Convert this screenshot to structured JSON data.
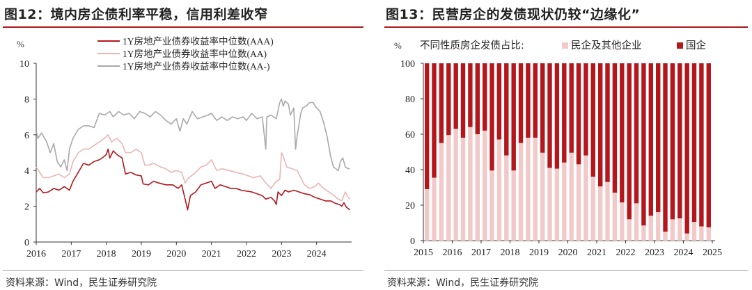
{
  "left_panel": {
    "title": "图12：境内房企债利率平稳，信用利差收窄",
    "source": "资料来源：Wind，民生证券研究院"
  },
  "right_panel": {
    "title": "图13：民营房企的发债现状仍较“边缘化”",
    "source": "资料来源：Wind，民生证券研究院"
  },
  "colors": {
    "aaa": "#b3161b",
    "aa": "#eab4b4",
    "aa_minus": "#a8a8a8",
    "private": "#f2c9c9",
    "state": "#b3161b",
    "title_rule": "#b3161b"
  },
  "chart_data": [
    {
      "type": "line",
      "ylabel": "%",
      "ylim": [
        0,
        10
      ],
      "yticks": [
        "0",
        "2",
        "4",
        "6",
        "8",
        "10"
      ],
      "xlim": [
        2016,
        2025
      ],
      "xticks": [
        "2016",
        "2017",
        "2018",
        "2019",
        "2020",
        "2021",
        "2022",
        "2023",
        "2024"
      ],
      "legend_position": "top-right",
      "grid": false,
      "series": [
        {
          "name": "1Y房地产业债券收益率中位数(AAA)",
          "color_key": "aaa",
          "points": [
            [
              2016.0,
              2.8
            ],
            [
              2016.1,
              3.0
            ],
            [
              2016.2,
              2.75
            ],
            [
              2016.35,
              2.8
            ],
            [
              2016.5,
              3.0
            ],
            [
              2016.65,
              2.9
            ],
            [
              2016.8,
              3.1
            ],
            [
              2016.95,
              2.9
            ],
            [
              2017.05,
              3.4
            ],
            [
              2017.2,
              3.9
            ],
            [
              2017.35,
              4.4
            ],
            [
              2017.5,
              4.3
            ],
            [
              2017.65,
              4.5
            ],
            [
              2017.8,
              4.6
            ],
            [
              2017.95,
              4.8
            ],
            [
              2018.0,
              4.9
            ],
            [
              2018.05,
              5.2
            ],
            [
              2018.1,
              4.7
            ],
            [
              2018.2,
              5.1
            ],
            [
              2018.3,
              4.9
            ],
            [
              2018.45,
              4.7
            ],
            [
              2018.55,
              3.8
            ],
            [
              2018.7,
              3.9
            ],
            [
              2018.85,
              3.75
            ],
            [
              2019.0,
              3.7
            ],
            [
              2019.05,
              3.25
            ],
            [
              2019.2,
              3.2
            ],
            [
              2019.35,
              3.4
            ],
            [
              2019.5,
              3.3
            ],
            [
              2019.7,
              3.2
            ],
            [
              2019.9,
              3.2
            ],
            [
              2020.05,
              3.0
            ],
            [
              2020.15,
              3.2
            ],
            [
              2020.25,
              2.4
            ],
            [
              2020.32,
              1.8
            ],
            [
              2020.4,
              2.6
            ],
            [
              2020.55,
              2.8
            ],
            [
              2020.7,
              3.2
            ],
            [
              2020.85,
              3.3
            ],
            [
              2021.0,
              3.4
            ],
            [
              2021.1,
              3.0
            ],
            [
              2021.25,
              3.2
            ],
            [
              2021.4,
              3.1
            ],
            [
              2021.55,
              3.0
            ],
            [
              2021.7,
              3.0
            ],
            [
              2021.85,
              2.9
            ],
            [
              2022.0,
              2.85
            ],
            [
              2022.15,
              2.8
            ],
            [
              2022.3,
              2.7
            ],
            [
              2022.45,
              2.6
            ],
            [
              2022.55,
              2.4
            ],
            [
              2022.7,
              2.5
            ],
            [
              2022.8,
              2.3
            ],
            [
              2022.85,
              2.1
            ],
            [
              2022.9,
              2.8
            ],
            [
              2023.0,
              2.6
            ],
            [
              2023.1,
              2.9
            ],
            [
              2023.2,
              2.8
            ],
            [
              2023.35,
              2.9
            ],
            [
              2023.5,
              2.8
            ],
            [
              2023.65,
              2.7
            ],
            [
              2023.8,
              2.65
            ],
            [
              2023.95,
              2.5
            ],
            [
              2024.1,
              2.4
            ],
            [
              2024.25,
              2.3
            ],
            [
              2024.4,
              2.3
            ],
            [
              2024.55,
              2.15
            ],
            [
              2024.65,
              2.1
            ],
            [
              2024.72,
              2.0
            ],
            [
              2024.78,
              2.2
            ],
            [
              2024.85,
              1.95
            ],
            [
              2024.95,
              1.8
            ]
          ]
        },
        {
          "name": "1Y房地产业债券收益率中位数(AA)",
          "color_key": "aa",
          "points": [
            [
              2016.0,
              4.2
            ],
            [
              2016.1,
              3.9
            ],
            [
              2016.2,
              3.6
            ],
            [
              2016.35,
              3.6
            ],
            [
              2016.5,
              3.7
            ],
            [
              2016.65,
              3.8
            ],
            [
              2016.8,
              3.6
            ],
            [
              2016.95,
              3.8
            ],
            [
              2017.05,
              4.5
            ],
            [
              2017.2,
              5.0
            ],
            [
              2017.35,
              5.2
            ],
            [
              2017.5,
              5.2
            ],
            [
              2017.65,
              5.4
            ],
            [
              2017.8,
              5.6
            ],
            [
              2017.95,
              5.8
            ],
            [
              2018.05,
              6.0
            ],
            [
              2018.15,
              5.6
            ],
            [
              2018.3,
              5.8
            ],
            [
              2018.45,
              5.5
            ],
            [
              2018.55,
              5.0
            ],
            [
              2018.7,
              5.0
            ],
            [
              2018.85,
              5.2
            ],
            [
              2019.0,
              5.0
            ],
            [
              2019.1,
              4.3
            ],
            [
              2019.2,
              4.3
            ],
            [
              2019.35,
              4.4
            ],
            [
              2019.55,
              4.2
            ],
            [
              2019.7,
              4.1
            ],
            [
              2019.85,
              3.9
            ],
            [
              2020.0,
              4.0
            ],
            [
              2020.15,
              3.9
            ],
            [
              2020.25,
              3.3
            ],
            [
              2020.35,
              3.6
            ],
            [
              2020.5,
              3.8
            ],
            [
              2020.7,
              4.2
            ],
            [
              2020.85,
              4.3
            ],
            [
              2021.0,
              4.6
            ],
            [
              2021.15,
              4.0
            ],
            [
              2021.3,
              4.1
            ],
            [
              2021.5,
              4.0
            ],
            [
              2021.7,
              3.9
            ],
            [
              2021.9,
              3.8
            ],
            [
              2022.05,
              3.7
            ],
            [
              2022.2,
              3.6
            ],
            [
              2022.4,
              3.7
            ],
            [
              2022.55,
              3.3
            ],
            [
              2022.7,
              3.0
            ],
            [
              2022.85,
              3.4
            ],
            [
              2022.95,
              3.5
            ],
            [
              2023.0,
              5.0
            ],
            [
              2023.05,
              4.8
            ],
            [
              2023.15,
              4.2
            ],
            [
              2023.3,
              4.1
            ],
            [
              2023.45,
              4.0
            ],
            [
              2023.55,
              3.6
            ],
            [
              2023.65,
              3.2
            ],
            [
              2023.8,
              3.0
            ],
            [
              2023.95,
              3.1
            ],
            [
              2024.05,
              3.3
            ],
            [
              2024.2,
              3.0
            ],
            [
              2024.35,
              2.8
            ],
            [
              2024.5,
              2.6
            ],
            [
              2024.62,
              2.4
            ],
            [
              2024.72,
              2.3
            ],
            [
              2024.82,
              2.8
            ],
            [
              2024.9,
              2.5
            ],
            [
              2024.95,
              2.4
            ]
          ]
        },
        {
          "name": "1Y房地产业债券收益率中位数(AA-)",
          "color_key": "aa_minus",
          "points": [
            [
              2016.0,
              6.2
            ],
            [
              2016.05,
              5.8
            ],
            [
              2016.15,
              6.1
            ],
            [
              2016.3,
              5.6
            ],
            [
              2016.4,
              5.0
            ],
            [
              2016.5,
              5.5
            ],
            [
              2016.6,
              4.5
            ],
            [
              2016.7,
              4.2
            ],
            [
              2016.8,
              4.6
            ],
            [
              2016.88,
              4.0
            ],
            [
              2016.95,
              5.2
            ],
            [
              2017.05,
              5.8
            ],
            [
              2017.2,
              6.3
            ],
            [
              2017.35,
              6.5
            ],
            [
              2017.5,
              6.5
            ],
            [
              2017.65,
              6.4
            ],
            [
              2017.8,
              7.2
            ],
            [
              2017.95,
              7.1
            ],
            [
              2018.1,
              7.3
            ],
            [
              2018.2,
              7.0
            ],
            [
              2018.35,
              7.3
            ],
            [
              2018.5,
              7.1
            ],
            [
              2018.65,
              7.2
            ],
            [
              2018.8,
              6.9
            ],
            [
              2018.95,
              7.3
            ],
            [
              2019.1,
              7.2
            ],
            [
              2019.25,
              7.0
            ],
            [
              2019.4,
              7.3
            ],
            [
              2019.55,
              7.1
            ],
            [
              2019.7,
              6.8
            ],
            [
              2019.85,
              6.6
            ],
            [
              2020.0,
              6.9
            ],
            [
              2020.1,
              6.2
            ],
            [
              2020.2,
              6.9
            ],
            [
              2020.3,
              6.6
            ],
            [
              2020.45,
              7.3
            ],
            [
              2020.6,
              6.9
            ],
            [
              2020.75,
              7.0
            ],
            [
              2020.9,
              7.1
            ],
            [
              2021.0,
              7.2
            ],
            [
              2021.15,
              6.8
            ],
            [
              2021.3,
              7.0
            ],
            [
              2021.45,
              6.8
            ],
            [
              2021.6,
              7.0
            ],
            [
              2021.75,
              6.9
            ],
            [
              2021.9,
              7.0
            ],
            [
              2022.0,
              6.8
            ],
            [
              2022.15,
              7.2
            ],
            [
              2022.3,
              6.9
            ],
            [
              2022.45,
              7.0
            ],
            [
              2022.55,
              5.2
            ],
            [
              2022.58,
              7.0
            ],
            [
              2022.7,
              7.1
            ],
            [
              2022.85,
              6.9
            ],
            [
              2022.95,
              7.8
            ],
            [
              2023.0,
              8.0
            ],
            [
              2023.05,
              7.6
            ],
            [
              2023.1,
              7.9
            ],
            [
              2023.2,
              7.7
            ],
            [
              2023.25,
              7.1
            ],
            [
              2023.35,
              7.5
            ],
            [
              2023.4,
              5.2
            ],
            [
              2023.45,
              6.0
            ],
            [
              2023.55,
              7.2
            ],
            [
              2023.6,
              7.5
            ],
            [
              2023.7,
              7.6
            ],
            [
              2023.8,
              7.8
            ],
            [
              2023.9,
              7.8
            ],
            [
              2024.0,
              7.5
            ],
            [
              2024.1,
              7.3
            ],
            [
              2024.2,
              6.7
            ],
            [
              2024.3,
              5.9
            ],
            [
              2024.4,
              4.8
            ],
            [
              2024.48,
              4.2
            ],
            [
              2024.55,
              4.1
            ],
            [
              2024.62,
              4.0
            ],
            [
              2024.68,
              4.5
            ],
            [
              2024.75,
              4.7
            ],
            [
              2024.82,
              4.2
            ],
            [
              2024.9,
              4.1
            ],
            [
              2024.95,
              4.1
            ]
          ]
        }
      ]
    },
    {
      "type": "bar",
      "subtype": "stacked_100",
      "ylabel": "%",
      "ylim": [
        0,
        100
      ],
      "yticks": [
        "0",
        "20",
        "40",
        "60",
        "80",
        "100"
      ],
      "xlim": [
        2015,
        2025
      ],
      "xticks": [
        "2015",
        "2016",
        "2017",
        "2018",
        "2019",
        "2020",
        "2021",
        "2022",
        "2023",
        "2024",
        "2025"
      ],
      "legend_title": "不同性质房企发债占比:",
      "legend_position": "top",
      "grid": false,
      "series": [
        {
          "name": "民企及其他企业",
          "color_key": "private"
        },
        {
          "name": "国企",
          "color_key": "state"
        }
      ],
      "x": [
        2015.0,
        2015.25,
        2015.5,
        2015.75,
        2016.0,
        2016.25,
        2016.5,
        2016.75,
        2017.0,
        2017.25,
        2017.5,
        2017.75,
        2018.0,
        2018.25,
        2018.5,
        2018.75,
        2019.0,
        2019.25,
        2019.5,
        2019.75,
        2020.0,
        2020.25,
        2020.5,
        2020.75,
        2021.0,
        2021.25,
        2021.5,
        2021.75,
        2022.0,
        2022.25,
        2022.5,
        2022.75,
        2023.0,
        2023.25,
        2023.5,
        2023.75,
        2024.0,
        2024.25,
        2024.5,
        2024.75
      ],
      "private_values": [
        29,
        35.5,
        55,
        59.5,
        63,
        58,
        64,
        60,
        62,
        39.5,
        57,
        48,
        39.5,
        55,
        58,
        58,
        49.5,
        41,
        40.5,
        44,
        49.5,
        43,
        48,
        36,
        30.5,
        33,
        27,
        21.5,
        12,
        21,
        8.5,
        14,
        16,
        5,
        12,
        12.5,
        4,
        10.5,
        8,
        7.5
      ]
    }
  ]
}
